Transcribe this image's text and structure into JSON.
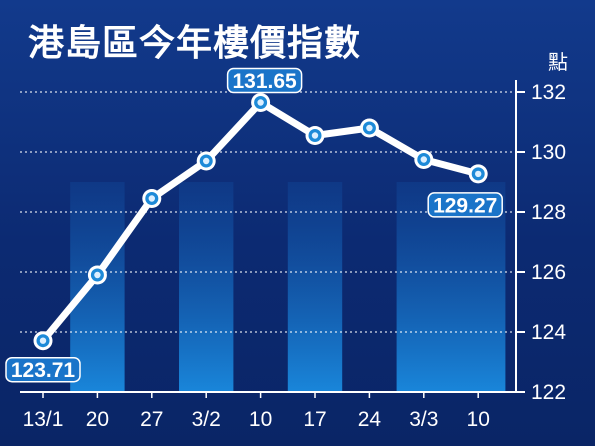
{
  "chart_data": {
    "type": "line",
    "title": "港島區今年樓價指數",
    "unit": "點",
    "categories": [
      "13/1",
      "20",
      "27",
      "3/2",
      "10",
      "17",
      "24",
      "3/3",
      "10"
    ],
    "values": [
      123.71,
      125.9,
      128.45,
      129.7,
      131.65,
      130.55,
      130.8,
      129.75,
      129.27
    ],
    "ylim": [
      122,
      132
    ],
    "yticks": [
      122,
      124,
      126,
      128,
      130,
      132
    ],
    "grid": true,
    "callouts": [
      {
        "index": 0,
        "text": "123.71"
      },
      {
        "index": 4,
        "text": "131.65"
      },
      {
        "index": 8,
        "text": "129.27"
      }
    ],
    "colors": {
      "background": "#0c2a72",
      "line": "#ffffff",
      "marker_ring": "#1d8ad8",
      "marker_center": "#dcefff",
      "callout": "#1a74c9",
      "band": "#1668c4"
    }
  }
}
